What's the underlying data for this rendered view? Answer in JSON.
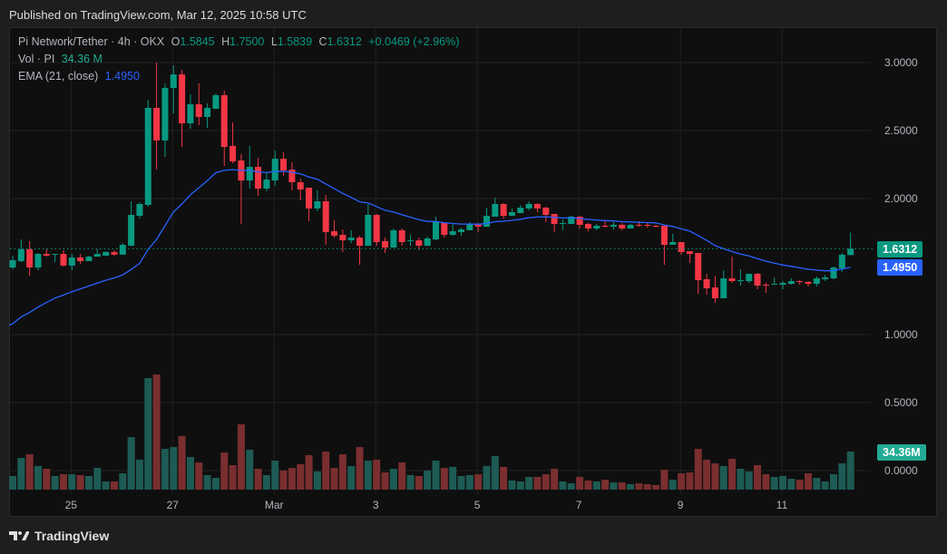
{
  "header": {
    "published": "Published on TradingView.com, Mar 12, 2025 10:58 UTC"
  },
  "legend": {
    "symbol": "Pi Network/Tether · 4h · OKX",
    "o_label": "O",
    "o": "1.5845",
    "h_label": "H",
    "h": "1.7500",
    "l_label": "L",
    "l": "1.5839",
    "c_label": "C",
    "c": "1.6312",
    "change": "+0.0469 (+2.96%)",
    "vol_label": "Vol · PI",
    "vol": "34.36 M",
    "ema_label": "EMA (21, close)",
    "ema": "1.4950"
  },
  "price_labels": {
    "last": "1.6312",
    "ema": "1.4950",
    "volume": "34.36M"
  },
  "footer": {
    "brand": "TradingView"
  },
  "colors": {
    "up": "#089981",
    "down": "#f23645",
    "ema": "#2962ff",
    "vol_up": "#1d5b54",
    "vol_down": "#7a2e2f"
  },
  "chart_data": {
    "type": "candlestick",
    "title": "Pi Network/Tether · 4h · OKX",
    "y_ticks": [
      "3.0000",
      "2.5000",
      "2.0000",
      "1.0000",
      "0.5000",
      "0.0000"
    ],
    "y_tick_values": [
      3.0,
      2.5,
      2.0,
      1.0,
      0.5,
      0.0
    ],
    "ylim": [
      0,
      3.3
    ],
    "x_ticks": [
      {
        "label": "25",
        "index": 7
      },
      {
        "label": "27",
        "index": 19
      },
      {
        "label": "Mar",
        "index": 31
      },
      {
        "label": "3",
        "index": 43
      },
      {
        "label": "5",
        "index": 55
      },
      {
        "label": "7",
        "index": 67
      },
      {
        "label": "9",
        "index": 79
      },
      {
        "label": "11",
        "index": 91
      }
    ],
    "grid": true,
    "ema_period": 21,
    "ema_start": 1.08,
    "last_price": 1.6312,
    "ema_last": 1.495,
    "ohlc": [
      [
        1.493,
        1.58,
        1.48,
        1.547
      ],
      [
        1.54,
        1.7,
        1.533,
        1.627
      ],
      [
        1.627,
        1.687,
        1.433,
        1.493
      ],
      [
        1.493,
        1.6,
        1.473,
        1.593
      ],
      [
        1.593,
        1.627,
        1.573,
        1.58
      ],
      [
        1.587,
        1.593,
        1.533,
        1.593
      ],
      [
        1.593,
        1.62,
        1.5,
        1.507
      ],
      [
        1.507,
        1.593,
        1.473,
        1.567
      ],
      [
        1.567,
        1.593,
        1.52,
        1.54
      ],
      [
        1.54,
        1.58,
        1.54,
        1.573
      ],
      [
        1.573,
        1.627,
        1.573,
        1.593
      ],
      [
        1.58,
        1.613,
        1.58,
        1.607
      ],
      [
        1.607,
        1.62,
        1.58,
        1.587
      ],
      [
        1.587,
        1.673,
        1.587,
        1.66
      ],
      [
        1.653,
        1.98,
        1.653,
        1.88
      ],
      [
        1.873,
        1.973,
        1.853,
        1.96
      ],
      [
        1.953,
        2.727,
        1.94,
        2.667
      ],
      [
        2.667,
        3.0,
        2.213,
        2.427
      ],
      [
        2.427,
        2.847,
        2.307,
        2.813
      ],
      [
        2.813,
        2.98,
        2.627,
        2.913
      ],
      [
        2.913,
        2.947,
        2.38,
        2.553
      ],
      [
        2.553,
        2.767,
        2.513,
        2.693
      ],
      [
        2.693,
        2.847,
        2.54,
        2.6
      ],
      [
        2.6,
        2.7,
        2.52,
        2.667
      ],
      [
        2.66,
        2.773,
        2.66,
        2.76
      ],
      [
        2.76,
        2.793,
        2.24,
        2.38
      ],
      [
        2.387,
        2.56,
        2.26,
        2.273
      ],
      [
        2.28,
        2.327,
        1.813,
        2.133
      ],
      [
        2.133,
        2.387,
        2.073,
        2.233
      ],
      [
        2.233,
        2.3,
        2.02,
        2.073
      ],
      [
        2.073,
        2.193,
        2.053,
        2.14
      ],
      [
        2.133,
        2.353,
        2.093,
        2.293
      ],
      [
        2.293,
        2.34,
        2.167,
        2.207
      ],
      [
        2.213,
        2.267,
        2.06,
        2.12
      ],
      [
        2.12,
        2.147,
        1.987,
        2.067
      ],
      [
        2.08,
        2.08,
        1.833,
        1.927
      ],
      [
        1.927,
        2.06,
        1.907,
        1.98
      ],
      [
        1.98,
        2.027,
        1.66,
        1.753
      ],
      [
        1.76,
        1.84,
        1.713,
        1.727
      ],
      [
        1.733,
        1.773,
        1.607,
        1.693
      ],
      [
        1.693,
        1.767,
        1.673,
        1.713
      ],
      [
        1.713,
        1.727,
        1.513,
        1.653
      ],
      [
        1.653,
        1.96,
        1.653,
        1.88
      ],
      [
        1.88,
        1.887,
        1.653,
        1.68
      ],
      [
        1.687,
        1.713,
        1.6,
        1.64
      ],
      [
        1.64,
        1.78,
        1.64,
        1.767
      ],
      [
        1.767,
        1.78,
        1.653,
        1.68
      ],
      [
        1.693,
        1.733,
        1.653,
        1.694
      ],
      [
        1.693,
        1.713,
        1.62,
        1.653
      ],
      [
        1.653,
        1.72,
        1.653,
        1.707
      ],
      [
        1.7,
        1.867,
        1.693,
        1.827
      ],
      [
        1.82,
        1.827,
        1.713,
        1.733
      ],
      [
        1.733,
        1.813,
        1.727,
        1.76
      ],
      [
        1.753,
        1.787,
        1.727,
        1.773
      ],
      [
        1.767,
        1.827,
        1.767,
        1.813
      ],
      [
        1.813,
        1.82,
        1.753,
        1.793
      ],
      [
        1.793,
        1.933,
        1.793,
        1.873
      ],
      [
        1.867,
        2.007,
        1.867,
        1.96
      ],
      [
        1.96,
        1.967,
        1.853,
        1.873
      ],
      [
        1.873,
        1.927,
        1.873,
        1.9
      ],
      [
        1.893,
        1.953,
        1.893,
        1.933
      ],
      [
        1.927,
        1.98,
        1.913,
        1.96
      ],
      [
        1.96,
        1.967,
        1.9,
        1.927
      ],
      [
        1.933,
        1.94,
        1.827,
        1.88
      ],
      [
        1.887,
        1.887,
        1.753,
        1.813
      ],
      [
        1.813,
        1.847,
        1.767,
        1.82
      ],
      [
        1.813,
        1.873,
        1.813,
        1.867
      ],
      [
        1.867,
        1.873,
        1.78,
        1.807
      ],
      [
        1.813,
        1.82,
        1.76,
        1.78
      ],
      [
        1.78,
        1.813,
        1.767,
        1.8
      ],
      [
        1.8,
        1.833,
        1.787,
        1.793
      ],
      [
        1.793,
        1.827,
        1.773,
        1.807
      ],
      [
        1.807,
        1.82,
        1.767,
        1.78
      ],
      [
        1.78,
        1.813,
        1.78,
        1.807
      ],
      [
        1.807,
        1.833,
        1.793,
        1.8
      ],
      [
        1.807,
        1.82,
        1.787,
        1.8
      ],
      [
        1.8,
        1.807,
        1.787,
        1.793
      ],
      [
        1.8,
        1.8,
        1.513,
        1.66
      ],
      [
        1.66,
        1.74,
        1.66,
        1.68
      ],
      [
        1.68,
        1.68,
        1.587,
        1.607
      ],
      [
        1.613,
        1.613,
        1.527,
        1.593
      ],
      [
        1.6,
        1.6,
        1.3,
        1.4
      ],
      [
        1.407,
        1.447,
        1.293,
        1.34
      ],
      [
        1.347,
        1.433,
        1.233,
        1.267
      ],
      [
        1.267,
        1.473,
        1.267,
        1.413
      ],
      [
        1.413,
        1.573,
        1.38,
        1.393
      ],
      [
        1.393,
        1.48,
        1.36,
        1.4
      ],
      [
        1.393,
        1.447,
        1.38,
        1.447
      ],
      [
        1.447,
        1.453,
        1.333,
        1.36
      ],
      [
        1.367,
        1.38,
        1.307,
        1.36
      ],
      [
        1.367,
        1.42,
        1.367,
        1.373
      ],
      [
        1.367,
        1.393,
        1.333,
        1.38
      ],
      [
        1.373,
        1.413,
        1.367,
        1.393
      ],
      [
        1.393,
        1.4,
        1.367,
        1.387
      ],
      [
        1.387,
        1.393,
        1.353,
        1.373
      ],
      [
        1.373,
        1.427,
        1.353,
        1.413
      ],
      [
        1.407,
        1.44,
        1.393,
        1.42
      ],
      [
        1.413,
        1.5,
        1.407,
        1.493
      ],
      [
        1.487,
        1.6,
        1.46,
        1.587
      ],
      [
        1.5845,
        1.75,
        1.5839,
        1.6312
      ]
    ],
    "volume_millions": [
      12.3,
      28.6,
      31.9,
      21.3,
      18.8,
      12.3,
      13.9,
      13.9,
      13.1,
      12.3,
      19.6,
      7.4,
      7.4,
      14.7,
      47.4,
      27.0,
      100.6,
      103.9,
      36.8,
      38.4,
      48.3,
      29.4,
      24.5,
      13.1,
      10.6,
      33.5,
      22.1,
      58.9,
      36.0,
      18.8,
      13.1,
      26.2,
      17.2,
      19.6,
      22.9,
      31.1,
      16.4,
      34.4,
      19.6,
      31.9,
      21.3,
      38.4,
      26.2,
      27.0,
      15.5,
      18.8,
      24.5,
      13.1,
      12.3,
      17.2,
      26.2,
      19.6,
      20.5,
      12.3,
      13.1,
      13.9,
      21.3,
      30.3,
      20.5,
      8.2,
      7.4,
      11.5,
      11.5,
      13.9,
      18.8,
      7.4,
      5.7,
      11.5,
      8.2,
      7.4,
      9.0,
      6.5,
      6.5,
      4.9,
      5.7,
      4.9,
      4.1,
      18.0,
      9.0,
      14.7,
      15.5,
      36.8,
      27.0,
      23.7,
      21.3,
      27.8,
      18.8,
      16.4,
      22.1,
      13.9,
      11.5,
      12.3,
      9.8,
      9.0,
      14.7,
      10.6,
      7.4,
      13.9,
      23.7,
      34.36
    ]
  }
}
